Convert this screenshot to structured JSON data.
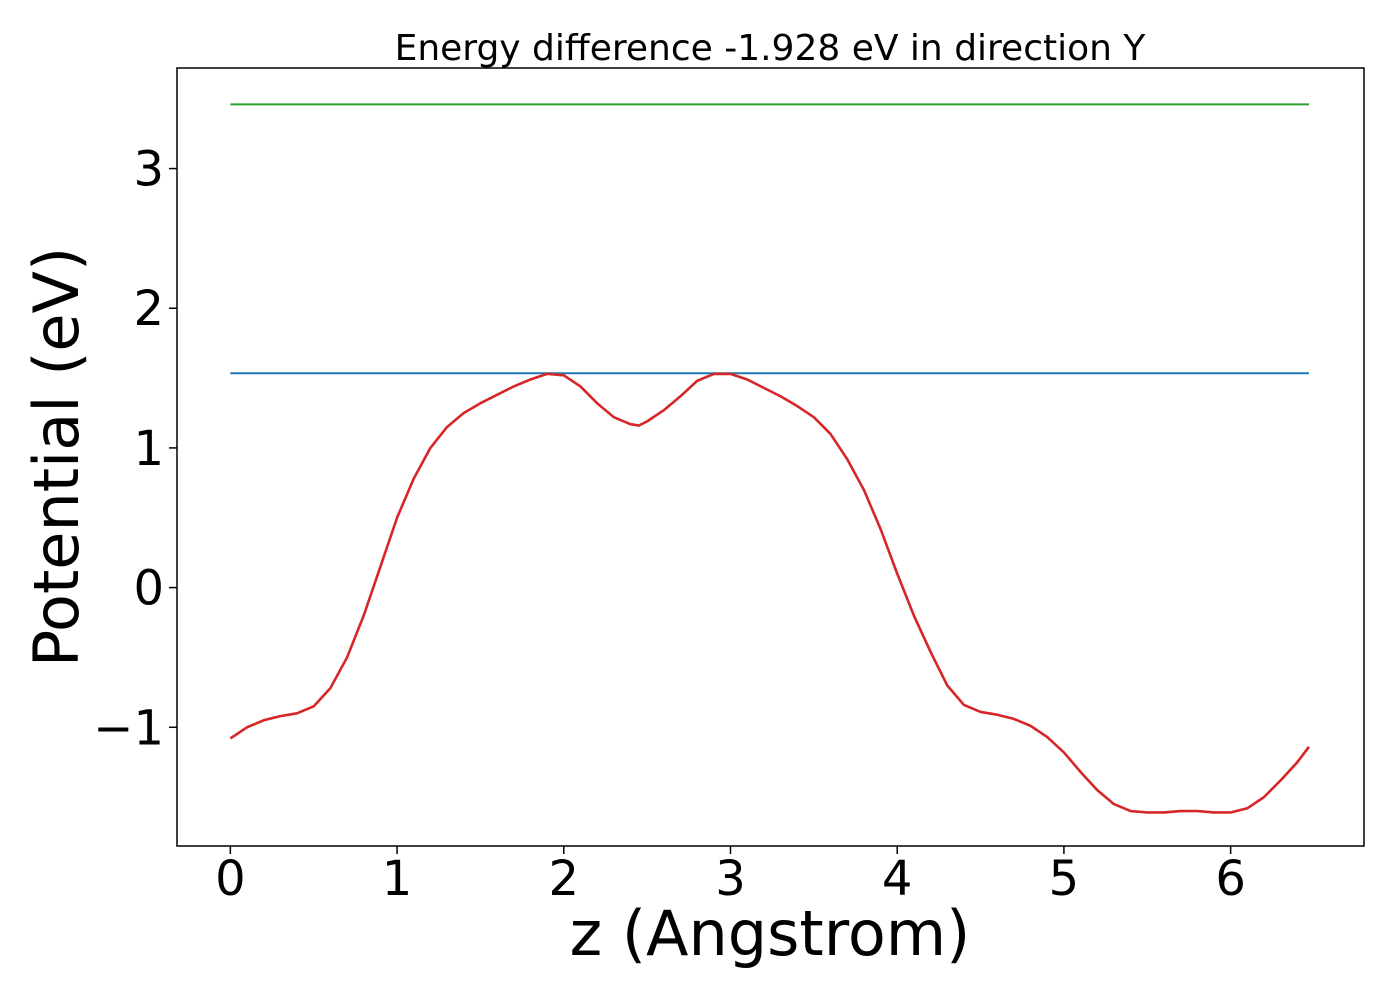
{
  "chart_data": {
    "type": "line",
    "title": "Energy difference -1.928 eV in direction Y",
    "xlabel": "z (Angstrom)",
    "ylabel": "Potential (eV)",
    "xlim": [
      -0.32,
      6.8
    ],
    "ylim": [
      -1.85,
      3.72
    ],
    "xticks": [
      0,
      1,
      2,
      3,
      4,
      5,
      6
    ],
    "yticks": [
      -1,
      0,
      1,
      2,
      3
    ],
    "ytick_labels": [
      "−1",
      "0",
      "1",
      "2",
      "3"
    ],
    "grid": false,
    "legend": "none",
    "series": [
      {
        "color": "#2ca02c",
        "x": [
          0,
          6.47
        ],
        "y": [
          3.46,
          3.46
        ]
      },
      {
        "color": "#1f77b4",
        "x": [
          0,
          6.47
        ],
        "y": [
          1.535,
          1.535
        ]
      },
      {
        "color": "#d62728",
        "x": [
          0,
          0.1,
          0.2,
          0.3,
          0.4,
          0.5,
          0.6,
          0.7,
          0.8,
          0.9,
          1.0,
          1.1,
          1.2,
          1.3,
          1.4,
          1.5,
          1.6,
          1.7,
          1.8,
          1.9,
          2.0,
          2.1,
          2.2,
          2.3,
          2.4,
          2.45,
          2.5,
          2.6,
          2.7,
          2.8,
          2.9,
          3.0,
          3.1,
          3.2,
          3.3,
          3.4,
          3.5,
          3.6,
          3.7,
          3.8,
          3.9,
          4.0,
          4.1,
          4.2,
          4.3,
          4.4,
          4.5,
          4.6,
          4.7,
          4.8,
          4.9,
          5.0,
          5.1,
          5.2,
          5.3,
          5.4,
          5.5,
          5.6,
          5.7,
          5.8,
          5.9,
          6.0,
          6.1,
          6.2,
          6.3,
          6.4,
          6.47
        ],
        "y": [
          -1.08,
          -1.0,
          -0.95,
          -0.92,
          -0.9,
          -0.85,
          -0.72,
          -0.5,
          -0.2,
          0.15,
          0.5,
          0.78,
          1.0,
          1.15,
          1.25,
          1.32,
          1.38,
          1.44,
          1.49,
          1.53,
          1.52,
          1.44,
          1.32,
          1.22,
          1.17,
          1.16,
          1.19,
          1.27,
          1.37,
          1.48,
          1.53,
          1.53,
          1.49,
          1.43,
          1.37,
          1.3,
          1.22,
          1.1,
          0.92,
          0.7,
          0.42,
          0.1,
          -0.2,
          -0.46,
          -0.7,
          -0.84,
          -0.89,
          -0.91,
          -0.94,
          -0.99,
          -1.07,
          -1.18,
          -1.32,
          -1.45,
          -1.55,
          -1.6,
          -1.61,
          -1.61,
          -1.6,
          -1.6,
          -1.61,
          -1.61,
          -1.58,
          -1.5,
          -1.38,
          -1.25,
          -1.14
        ]
      }
    ]
  }
}
